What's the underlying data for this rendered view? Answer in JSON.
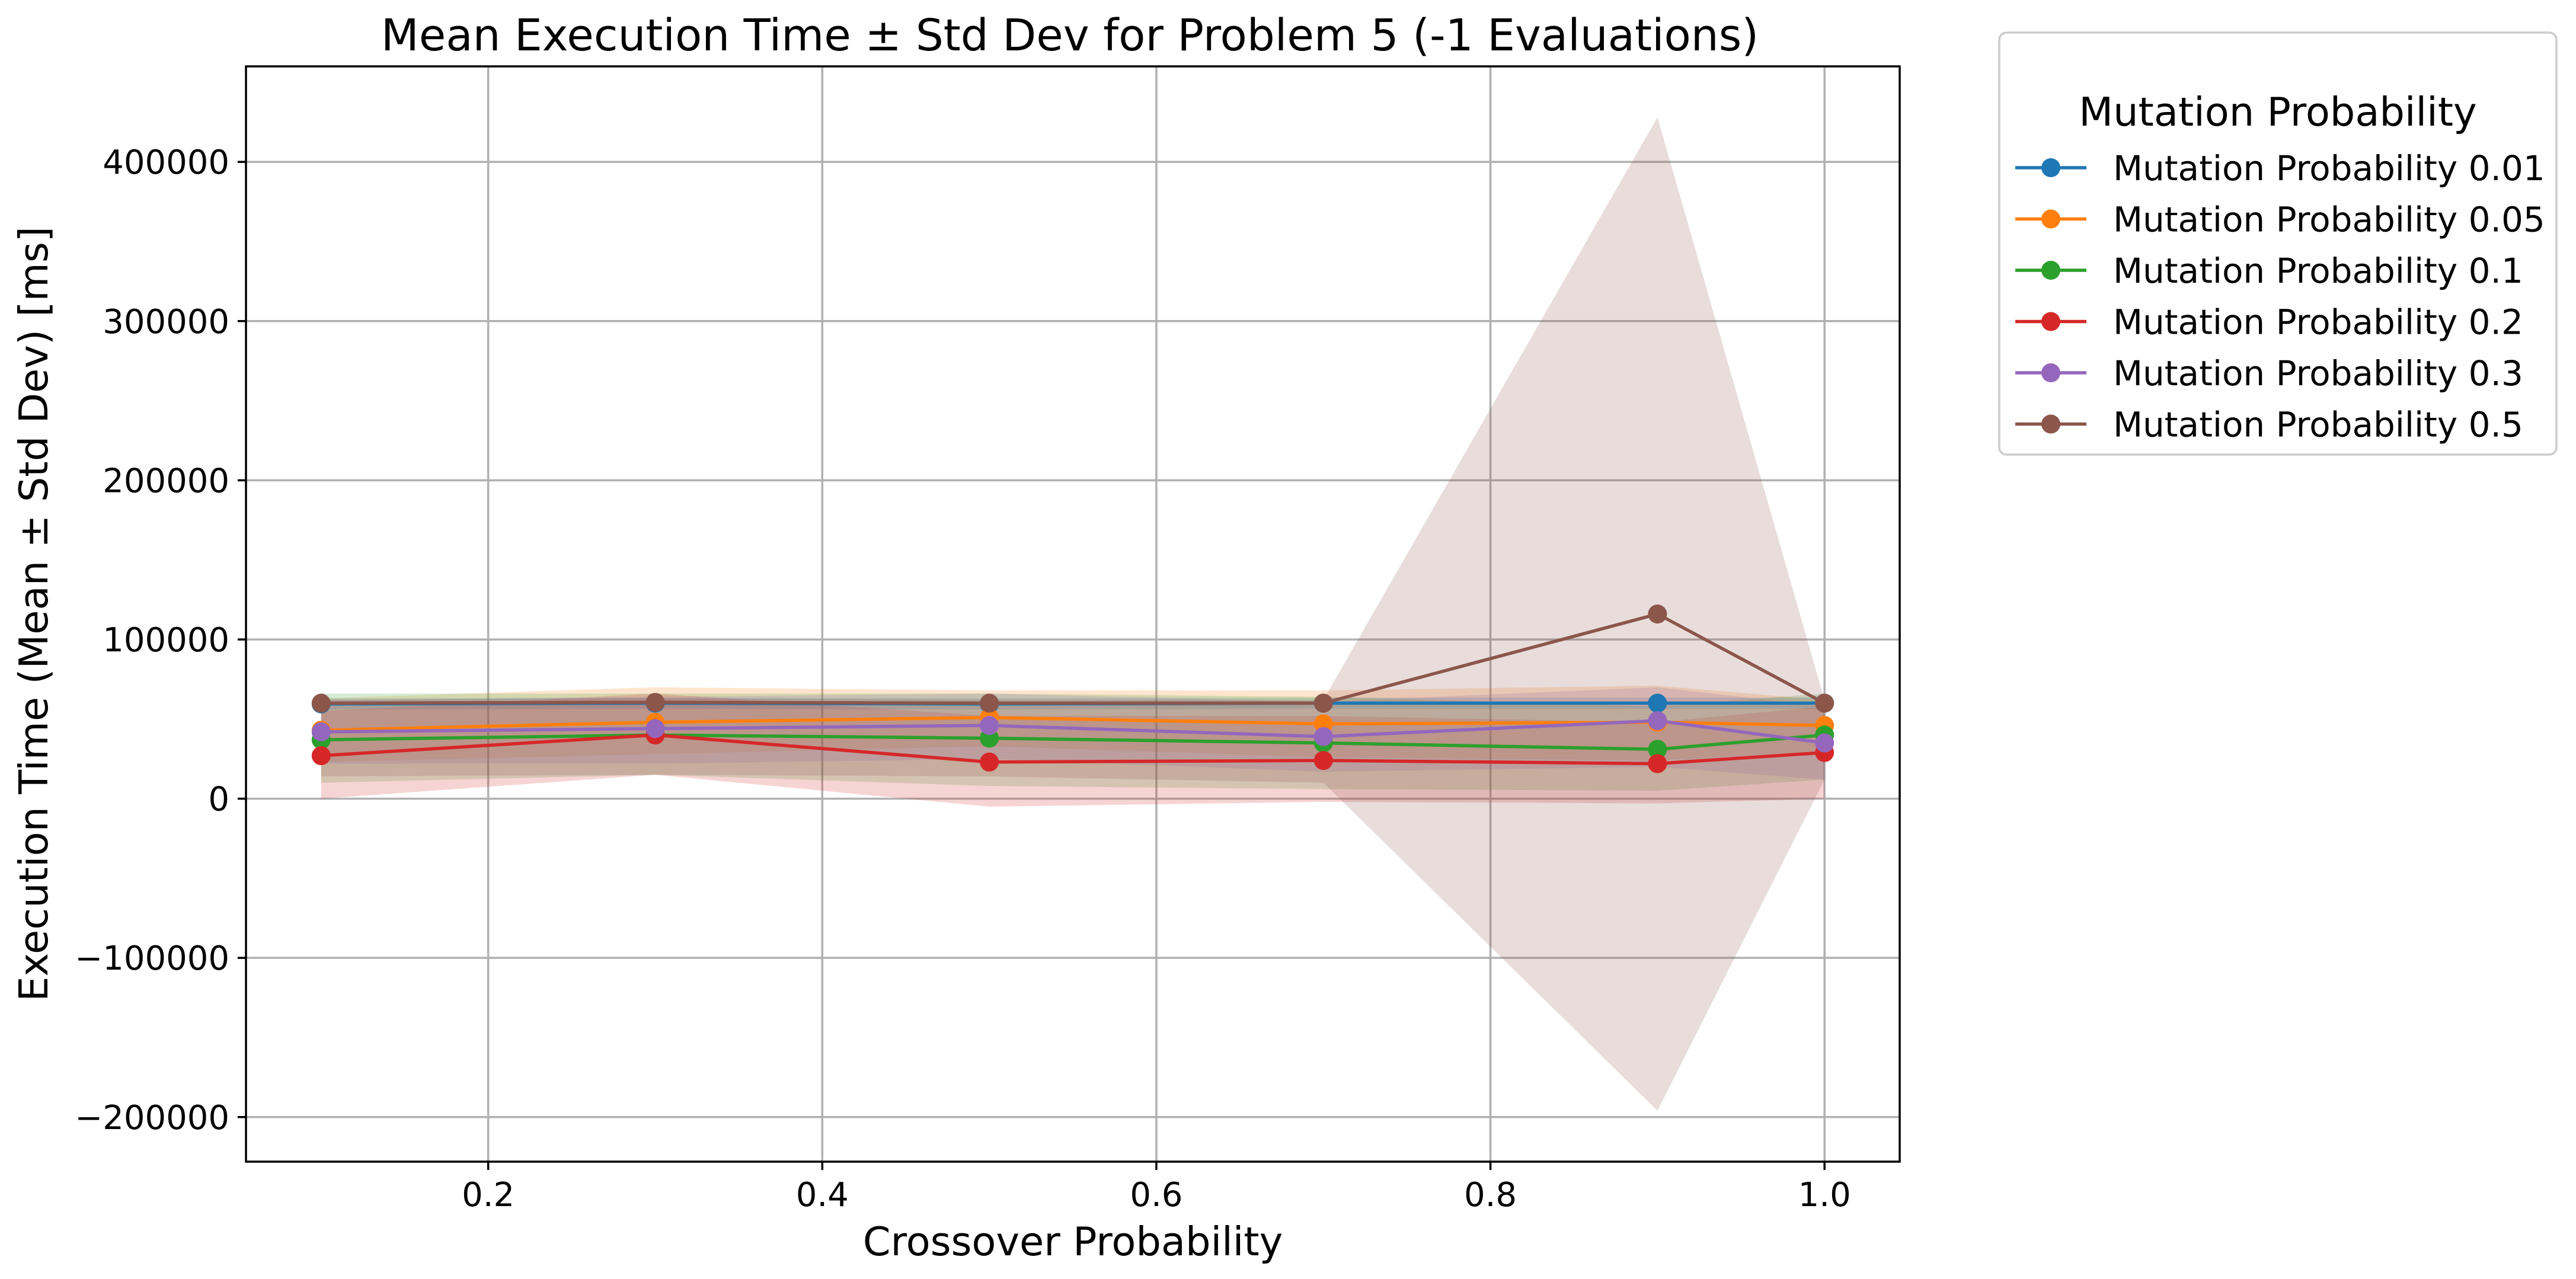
{
  "chart_data": {
    "type": "line",
    "title": "Mean Execution Time ± Std Dev for Problem 5 (-1 Evaluations)",
    "xlabel": "Crossover Probability",
    "ylabel": "Execution Time (Mean ± Std Dev) [ms]",
    "xlim": [
      0.055,
      1.045
    ],
    "ylim": [
      -228000,
      460000
    ],
    "xticks": [
      0.2,
      0.4,
      0.6,
      0.8,
      1.0
    ],
    "xtick_labels": [
      "0.2",
      "0.4",
      "0.6",
      "0.8",
      "1.0"
    ],
    "yticks": [
      -200000,
      -100000,
      0,
      100000,
      200000,
      300000,
      400000
    ],
    "ytick_labels": [
      "−200000",
      "−100000",
      "0",
      "100000",
      "200000",
      "300000",
      "400000"
    ],
    "grid": true,
    "legend_title": "Mutation Probability",
    "legend_position": "outside-top-right",
    "x": [
      0.1,
      0.3,
      0.5,
      0.7,
      0.9,
      1.0
    ],
    "series": [
      {
        "name": "Mutation Probability 0.01",
        "color": "#1f77b4",
        "values": [
          59500,
          60000,
          59500,
          60000,
          60000,
          60000
        ],
        "lower": [
          56000,
          56500,
          56000,
          56500,
          56500,
          56500
        ],
        "upper": [
          63000,
          63500,
          63000,
          63500,
          63500,
          63500
        ]
      },
      {
        "name": "Mutation Probability 0.05",
        "color": "#ff7f0e",
        "values": [
          43000,
          48000,
          51000,
          47000,
          48000,
          46000
        ],
        "lower": [
          23000,
          28000,
          33000,
          26000,
          24000,
          30000
        ],
        "upper": [
          63000,
          70000,
          68000,
          68000,
          71000,
          62000
        ]
      },
      {
        "name": "Mutation Probability 0.1",
        "color": "#2ca02c",
        "values": [
          37000,
          40000,
          38000,
          35000,
          31000,
          40000
        ],
        "lower": [
          10000,
          15000,
          8000,
          6000,
          5000,
          12000
        ],
        "upper": [
          66000,
          66000,
          66000,
          64000,
          58000,
          66000
        ]
      },
      {
        "name": "Mutation Probability 0.2",
        "color": "#d62728",
        "values": [
          27000,
          40000,
          23000,
          24000,
          22000,
          29000
        ],
        "lower": [
          0,
          15000,
          -5000,
          -2000,
          -3000,
          0
        ],
        "upper": [
          55000,
          66000,
          52000,
          52000,
          48000,
          58000
        ]
      },
      {
        "name": "Mutation Probability 0.3",
        "color": "#9467bd",
        "values": [
          42000,
          44000,
          46000,
          39000,
          49000,
          35000
        ],
        "lower": [
          22000,
          22000,
          25000,
          17000,
          20000,
          12000
        ],
        "upper": [
          62000,
          64000,
          66000,
          61000,
          70000,
          58000
        ]
      },
      {
        "name": "Mutation Probability 0.5",
        "color": "#8c564b",
        "values": [
          60000,
          60500,
          60000,
          60000,
          116000,
          60000
        ],
        "lower": [
          14000,
          15000,
          14000,
          10000,
          -196000,
          12000
        ],
        "upper": [
          62000,
          63000,
          62000,
          62000,
          428000,
          62000
        ]
      }
    ]
  }
}
